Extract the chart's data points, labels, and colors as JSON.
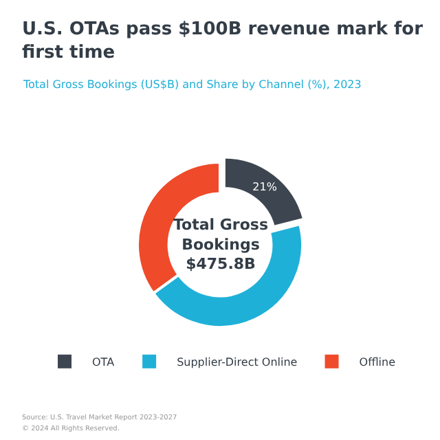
{
  "chart_data": {
    "type": "donut",
    "title": "U.S. OTAs pass $100B revenue mark for first time",
    "subtitle": "Total Gross Bookings (US$B) and Share by Channel (%), 2023",
    "categories": [
      "OTA",
      "Supplier-Direct Online",
      "Offline"
    ],
    "values": [
      21,
      44,
      35
    ],
    "colors": [
      "#3d4650",
      "#1fb0d8",
      "#ef4a2a"
    ],
    "value_labels": [
      "21%",
      null,
      null
    ],
    "annotations": [
      "Total Gross\nBookings\n$475.8B",
      "Source: U.S. Travel Market Report 2023-2027",
      "© 2024 All Rights Reserved."
    ],
    "legend": "bottom"
  }
}
